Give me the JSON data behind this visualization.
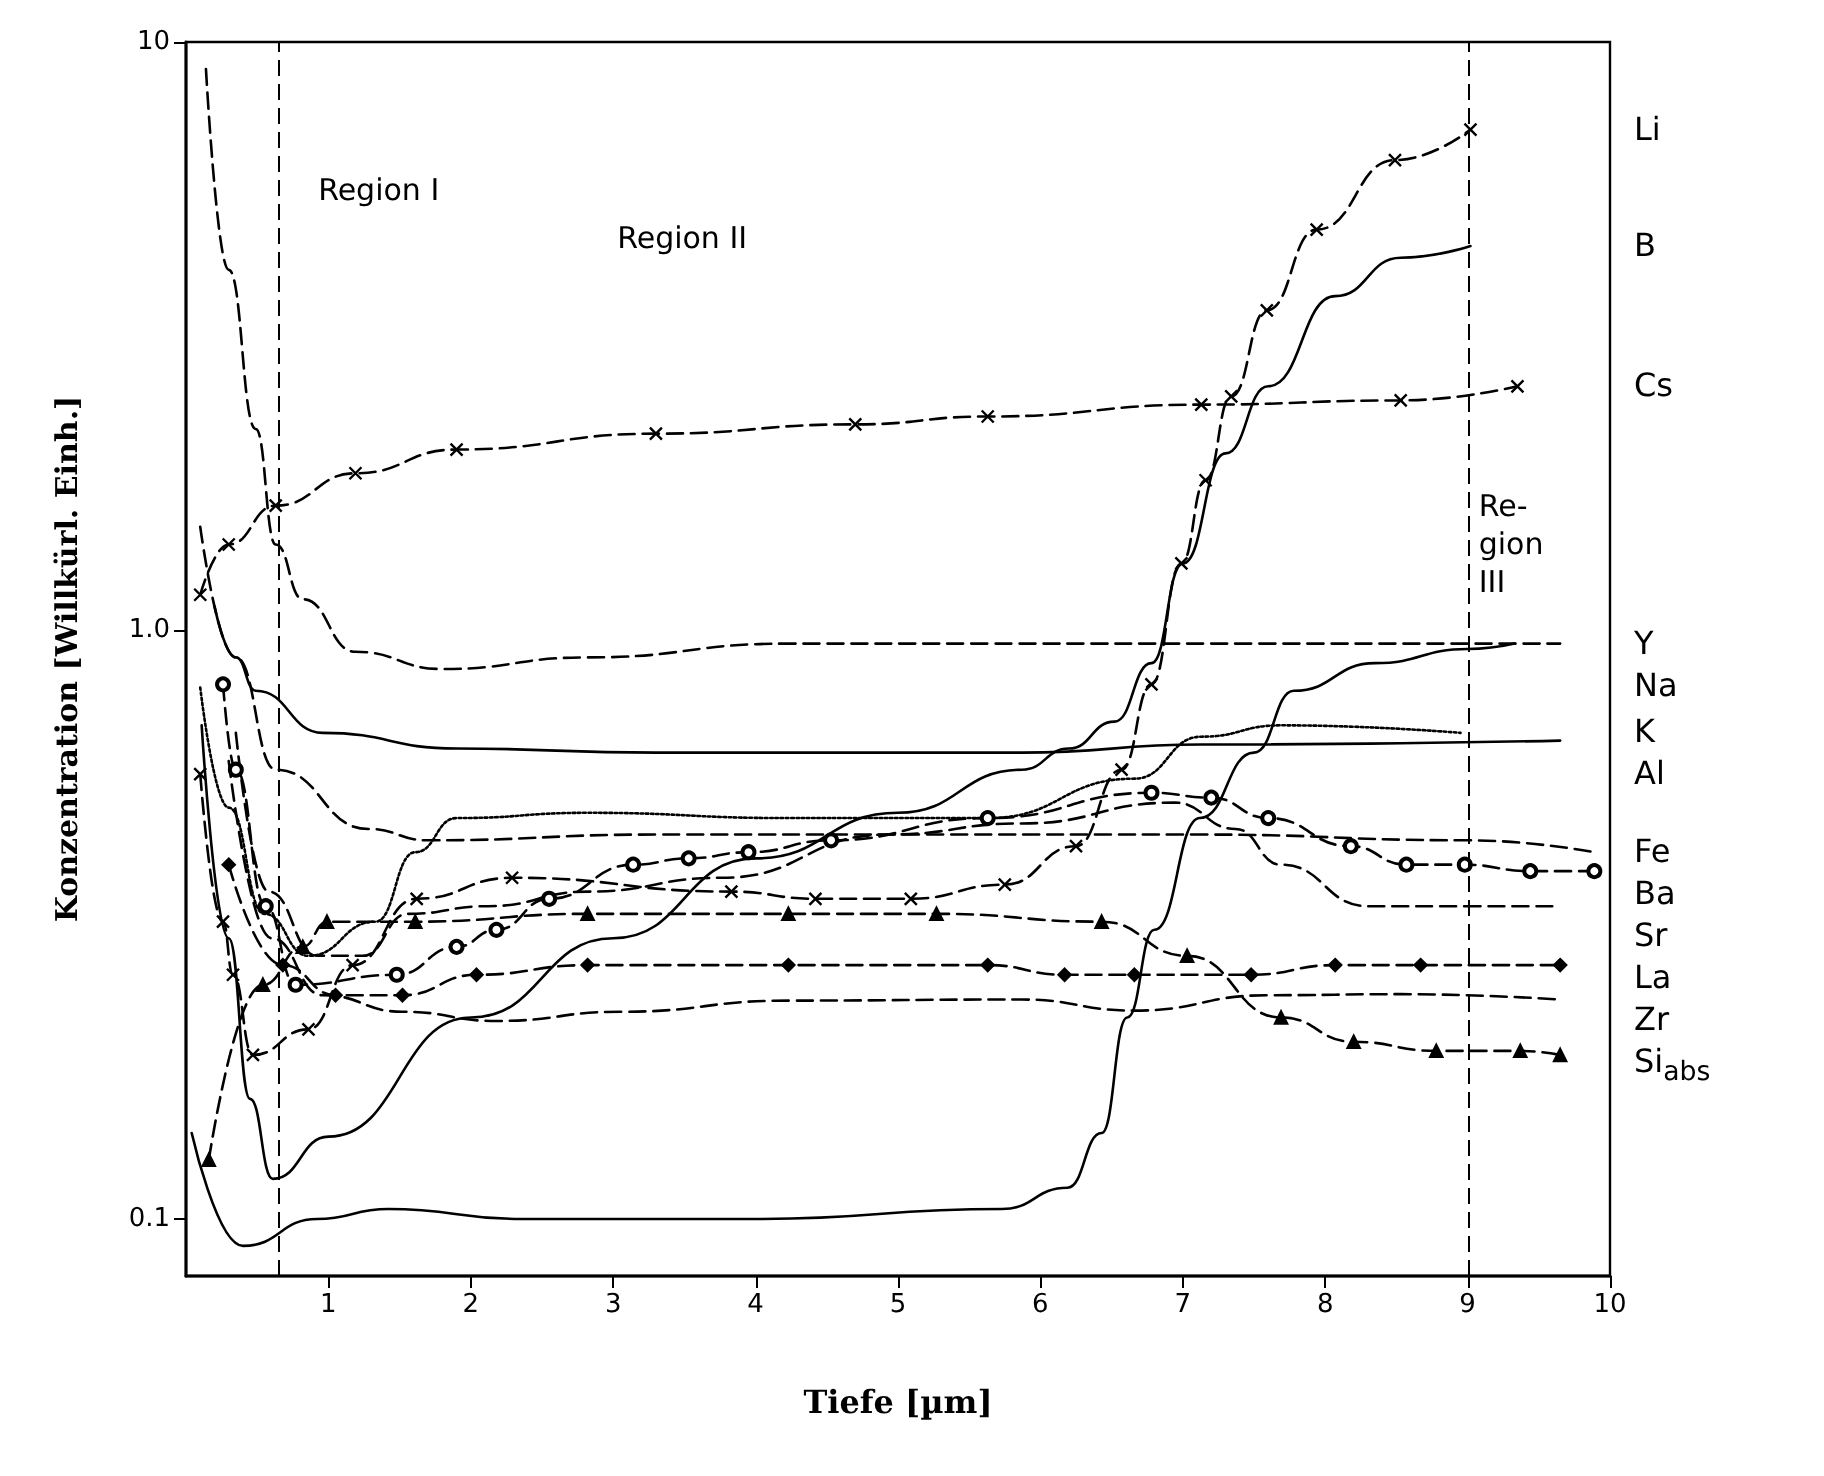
{
  "chart_data": {
    "type": "line",
    "xlabel": "Tiefe [µm]",
    "ylabel": "Konzentration [Willkürl. Einh.]",
    "log": "y",
    "xlim": [
      0,
      10
    ],
    "xticks": [
      1,
      2,
      3,
      4,
      5,
      6,
      7,
      8,
      9,
      10
    ],
    "ylim": [
      0.08,
      10
    ],
    "yticks": [
      {
        "value": 0.1,
        "label": "0.1"
      },
      {
        "value": 1,
        "label": "1.0"
      },
      {
        "value": 10,
        "label": "10"
      }
    ],
    "ref_lines": [
      {
        "axis": "x",
        "value": 0.65,
        "line_style": "dashed"
      },
      {
        "axis": "x",
        "value": 9.0,
        "line_style": "dashed"
      }
    ],
    "annotations": [
      "Region I",
      "Region II",
      "Re-gion III"
    ],
    "series": [
      {
        "name": "Li",
        "color": "#000000",
        "line_style": "dashed",
        "marker": "cross",
        "x": [
          0.1,
          0.26,
          0.33,
          0.47,
          0.86,
          1.17,
          1.62,
          2.29,
          3.83,
          4.42,
          5.09,
          5.75,
          6.25,
          6.57,
          6.78,
          6.99,
          7.16,
          7.34,
          7.59,
          7.94,
          8.49,
          9.02
        ],
        "values": [
          0.57,
          0.32,
          0.26,
          0.19,
          0.21,
          0.27,
          0.35,
          0.38,
          0.36,
          0.35,
          0.35,
          0.37,
          0.43,
          0.58,
          0.81,
          1.3,
          1.8,
          2.5,
          3.5,
          4.8,
          6.3,
          7.1
        ]
      },
      {
        "name": "B",
        "color": "#000000",
        "line_style": "solid",
        "marker": "none",
        "x": [
          0.11,
          0.3,
          0.45,
          0.61,
          1.0,
          2.0,
          3.0,
          4.0,
          5.0,
          5.87,
          6.2,
          6.52,
          6.78,
          7.0,
          7.3,
          7.6,
          8.07,
          8.53,
          9.02
        ],
        "values": [
          0.69,
          0.3,
          0.16,
          0.117,
          0.138,
          0.22,
          0.3,
          0.41,
          0.49,
          0.58,
          0.63,
          0.7,
          0.88,
          1.3,
          2.0,
          2.6,
          3.7,
          4.3,
          4.5
        ]
      },
      {
        "name": "Cs",
        "color": "#000000",
        "line_style": "dashed",
        "marker": "cross",
        "x": [
          0.1,
          0.3,
          0.63,
          1.19,
          1.9,
          3.3,
          4.7,
          5.63,
          7.13,
          8.53,
          9.35
        ],
        "values": [
          1.15,
          1.4,
          1.63,
          1.85,
          2.03,
          2.16,
          2.24,
          2.31,
          2.42,
          2.46,
          2.6
        ]
      },
      {
        "name": "Y",
        "color": "#000000",
        "line_style": "dashed",
        "marker": "none",
        "x": [
          0.14,
          0.3,
          0.49,
          0.63,
          0.82,
          1.19,
          1.8,
          2.82,
          4.23,
          5.63,
          7.5,
          9.65
        ],
        "values": [
          9.0,
          4.1,
          2.2,
          1.4,
          1.13,
          0.92,
          0.86,
          0.9,
          0.95,
          0.95,
          0.95,
          0.95
        ]
      },
      {
        "name": "Na",
        "color": "#000000",
        "line_style": "solid",
        "marker": "none",
        "x": [
          0.04,
          0.4,
          0.92,
          1.42,
          2.36,
          4.0,
          5.73,
          6.19,
          6.43,
          6.61,
          6.8,
          7.12,
          7.5,
          7.78,
          8.35,
          9.0,
          9.33
        ],
        "values": [
          0.14,
          0.09,
          0.1,
          0.104,
          0.1,
          0.1,
          0.104,
          0.113,
          0.14,
          0.22,
          0.31,
          0.48,
          0.62,
          0.79,
          0.88,
          0.93,
          0.95
        ]
      },
      {
        "name": "K",
        "color": "#000000",
        "line_style": "dotted",
        "marker": "none",
        "x": [
          0.1,
          0.3,
          0.55,
          0.86,
          1.33,
          1.61,
          1.9,
          2.82,
          4.23,
          5.63,
          6.66,
          7.13,
          7.69,
          8.95
        ],
        "values": [
          0.8,
          0.5,
          0.33,
          0.28,
          0.32,
          0.42,
          0.48,
          0.49,
          0.48,
          0.48,
          0.56,
          0.66,
          0.69,
          0.67
        ]
      },
      {
        "name": "Al",
        "color": "#000000",
        "line_style": "solid",
        "marker": "none",
        "x": [
          0.2,
          0.35,
          0.49,
          0.96,
          1.9,
          3.3,
          5.87,
          7.13,
          9.65
        ],
        "values": [
          1.1,
          0.9,
          0.79,
          0.67,
          0.63,
          0.62,
          0.62,
          0.64,
          0.65
        ]
      },
      {
        "name": "Fe",
        "color": "#000000",
        "line_style": "dashed",
        "marker": "none",
        "x": [
          0.1,
          0.35,
          0.63,
          1.28,
          1.7,
          3.3,
          5.17,
          7.13,
          9.0,
          9.89
        ],
        "values": [
          1.5,
          0.9,
          0.58,
          0.46,
          0.44,
          0.45,
          0.45,
          0.45,
          0.44,
          0.42
        ]
      },
      {
        "name": "Ba",
        "color": "#000000",
        "line_style": "dashed",
        "marker": "circle",
        "x": [
          0.26,
          0.35,
          0.56,
          0.77,
          1.48,
          1.9,
          2.18,
          2.55,
          3.14,
          3.53,
          3.95,
          4.53,
          5.63,
          6.78,
          7.2,
          7.6,
          8.18,
          8.57,
          8.98,
          9.44,
          9.89
        ],
        "values": [
          0.81,
          0.58,
          0.34,
          0.25,
          0.26,
          0.29,
          0.31,
          0.35,
          0.4,
          0.41,
          0.42,
          0.44,
          0.48,
          0.53,
          0.52,
          0.48,
          0.43,
          0.4,
          0.4,
          0.39,
          0.39
        ]
      },
      {
        "name": "Sr",
        "color": "#000000",
        "line_style": "dashed",
        "marker": "none",
        "x": [
          0.35,
          0.58,
          0.92,
          1.24,
          1.56,
          2.12,
          2.82,
          3.76,
          4.93,
          5.87,
          6.94,
          7.37,
          7.69,
          8.3,
          9.0,
          9.65
        ],
        "values": [
          0.67,
          0.36,
          0.28,
          0.28,
          0.33,
          0.34,
          0.36,
          0.38,
          0.45,
          0.47,
          0.51,
          0.46,
          0.4,
          0.34,
          0.34,
          0.34
        ]
      },
      {
        "name": "La",
        "color": "#000000",
        "line_style": "dashed",
        "marker": "diamond",
        "x": [
          0.3,
          0.68,
          1.05,
          1.52,
          2.04,
          2.82,
          4.23,
          5.63,
          6.17,
          6.66,
          7.48,
          8.07,
          8.67,
          9.65
        ],
        "values": [
          0.4,
          0.27,
          0.24,
          0.24,
          0.26,
          0.27,
          0.27,
          0.27,
          0.26,
          0.26,
          0.26,
          0.27,
          0.27,
          0.27
        ]
      },
      {
        "name": "Zr",
        "color": "#000000",
        "line_style": "dashed",
        "marker": "none",
        "x": [
          0.3,
          0.6,
          0.96,
          1.52,
          2.18,
          3.06,
          4.23,
          5.87,
          6.66,
          7.6,
          8.53,
          9.65
        ],
        "values": [
          0.6,
          0.3,
          0.24,
          0.225,
          0.217,
          0.225,
          0.235,
          0.236,
          0.226,
          0.24,
          0.241,
          0.236
        ]
      },
      {
        "name": "Si$_{abs}$",
        "color": "#000000",
        "line_style": "dashed",
        "marker": "triangle",
        "x": [
          0.16,
          0.54,
          0.82,
          0.99,
          1.61,
          2.82,
          4.23,
          5.27,
          6.43,
          7.03,
          7.69,
          8.2,
          8.78,
          9.37,
          9.65
        ],
        "values": [
          0.126,
          0.25,
          0.29,
          0.32,
          0.32,
          0.33,
          0.33,
          0.33,
          0.32,
          0.28,
          0.22,
          0.2,
          0.193,
          0.193,
          0.19
        ]
      }
    ]
  }
}
